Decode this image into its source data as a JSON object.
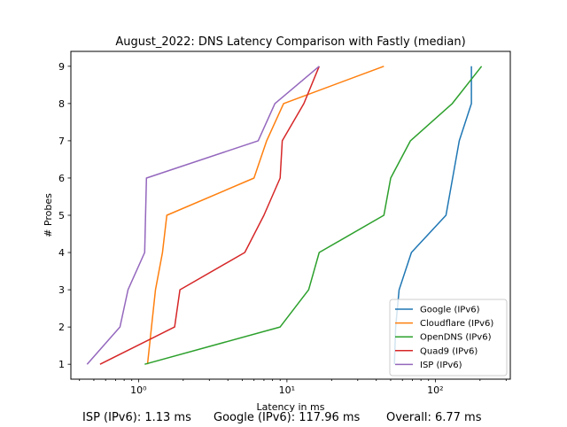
{
  "chart_data": {
    "type": "line",
    "title": "August_2022: DNS Latency Comparison with Fastly (median)",
    "xlabel": "Latency in ms",
    "ylabel": "# Probes",
    "xscale": "log",
    "xlim": [
      0.35,
      320
    ],
    "ylim": [
      0.6,
      9.4
    ],
    "xticks": [
      {
        "value": 1,
        "label": "10⁰"
      },
      {
        "value": 10,
        "label": "10¹"
      },
      {
        "value": 100,
        "label": "10²"
      }
    ],
    "yticks": [
      1,
      2,
      3,
      4,
      5,
      6,
      7,
      8,
      9
    ],
    "legend_position": "lower-right",
    "grid": false,
    "series": [
      {
        "name": "Google (IPv6)",
        "color": "#1f77b4",
        "x": [
          53,
          54,
          57,
          69,
          118,
          145,
          175,
          175,
          175
        ],
        "y": [
          1,
          2,
          3,
          4,
          5,
          7,
          8,
          9,
          9
        ]
      },
      {
        "name": "Cloudflare (IPv6)",
        "color": "#ff7f0e",
        "x": [
          1.15,
          1.3,
          1.45,
          1.55,
          6,
          7.3,
          9.5,
          45
        ],
        "y": [
          1,
          3,
          4,
          5,
          6,
          7,
          8,
          9
        ]
      },
      {
        "name": "OpenDNS (IPv6)",
        "color": "#2ca02c",
        "x": [
          1.1,
          9,
          14,
          16.5,
          45,
          50,
          68,
          130,
          205
        ],
        "y": [
          1,
          2,
          3,
          4,
          5,
          6,
          7,
          8,
          9
        ]
      },
      {
        "name": "Quad9 (IPv6)",
        "color": "#d62728",
        "x": [
          0.55,
          1.75,
          1.9,
          5.2,
          7,
          9,
          9.3,
          13,
          16.5
        ],
        "y": [
          1,
          2,
          3,
          4,
          5,
          6,
          7,
          8,
          9
        ]
      },
      {
        "name": "ISP (IPv6)",
        "color": "#9467bd",
        "x": [
          0.45,
          0.75,
          0.85,
          1.1,
          1.13,
          6.4,
          8.3,
          16.5
        ],
        "y": [
          1,
          2,
          3,
          4,
          6,
          7,
          8,
          9
        ]
      }
    ]
  },
  "footer": {
    "isp": "ISP (IPv6): 1.13 ms",
    "google": "Google (IPv6): 117.96 ms",
    "overall": "Overall: 6.77 ms"
  }
}
